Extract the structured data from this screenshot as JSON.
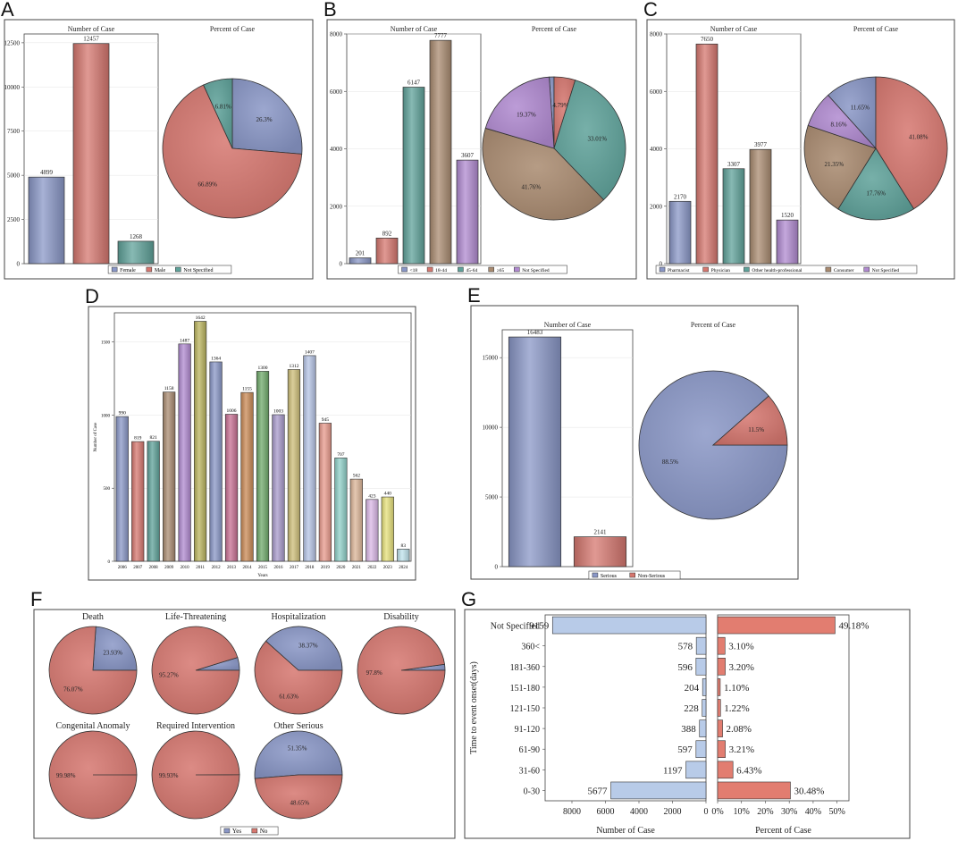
{
  "colors": {
    "blue": "#8a97c7",
    "red": "#d6776f",
    "teal": "#5fa29a",
    "tan": "#a98b70",
    "purple": "#b08ad0",
    "lightblue": "#b8cbe8",
    "salmon": "#e27d70"
  },
  "chart_data": [
    {
      "panel": "A",
      "type": "bar+pie",
      "bar_title": "Number of Case",
      "pie_title": "Percent of Case",
      "categories": [
        "Female",
        "Male",
        "Not Specified"
      ],
      "values": [
        4899,
        12457,
        1268
      ],
      "value_labels": [
        "4899",
        "12457",
        "1268"
      ],
      "percents": [
        26.3,
        66.89,
        6.81
      ],
      "percent_labels": [
        "26.3%",
        "66.89%",
        "6.81%"
      ],
      "colors": [
        "#8a97c7",
        "#d6776f",
        "#5fa29a"
      ],
      "ylim": [
        0,
        13000
      ],
      "yticks": [
        0,
        2500,
        5000,
        7500,
        10000,
        12500
      ]
    },
    {
      "panel": "B",
      "type": "bar+pie",
      "bar_title": "Number of Case",
      "pie_title": "Percent of Case",
      "categories": [
        "<18",
        "18-44",
        "45-64",
        "≥65",
        "Not Specified"
      ],
      "values": [
        201,
        892,
        6147,
        7777,
        3607
      ],
      "value_labels": [
        "201",
        "892",
        "6147",
        "7777",
        "3607"
      ],
      "percents": [
        1.08,
        4.79,
        33.01,
        41.76,
        19.37
      ],
      "percent_labels": [
        "",
        "4.79%",
        "33.01%",
        "41.76%",
        "19.37%"
      ],
      "colors": [
        "#8a97c7",
        "#d6776f",
        "#5fa29a",
        "#a98b70",
        "#b08ad0"
      ],
      "ylim": [
        0,
        8000
      ],
      "yticks": [
        0,
        2000,
        4000,
        6000,
        8000
      ]
    },
    {
      "panel": "C",
      "type": "bar+pie",
      "bar_title": "Number of Case",
      "pie_title": "Percent of Case",
      "categories": [
        "Pharmacist",
        "Physician",
        "Other health-professional",
        "Consumer",
        "Not Specified"
      ],
      "values": [
        2170,
        7650,
        3307,
        3977,
        1520
      ],
      "value_labels": [
        "2170",
        "7650",
        "3307",
        "3977",
        "1520"
      ],
      "percents": [
        11.65,
        41.08,
        17.76,
        21.35,
        8.16
      ],
      "percent_labels": [
        "11.65%",
        "41.08%",
        "17.76%",
        "21.35%",
        "8.16%"
      ],
      "colors": [
        "#8a97c7",
        "#d6776f",
        "#5fa29a",
        "#a98b70",
        "#b08ad0"
      ],
      "ylim": [
        0,
        8000
      ],
      "yticks": [
        0,
        2000,
        4000,
        6000,
        8000
      ]
    },
    {
      "panel": "D",
      "type": "bar",
      "xlabel": "Years",
      "ylabel": "Number of Case",
      "categories": [
        "2006",
        "2007",
        "2008",
        "2009",
        "2010",
        "2011",
        "2012",
        "2013",
        "2014",
        "2015",
        "2016",
        "2017",
        "2018",
        "2019",
        "2020",
        "2021",
        "2022",
        "2023",
        "2024"
      ],
      "values": [
        990,
        819,
        821,
        1158,
        1487,
        1642,
        1364,
        1006,
        1155,
        1300,
        1003,
        1312,
        1407,
        945,
        707,
        562,
        423,
        440,
        83
      ],
      "value_labels": [
        "990",
        "819",
        "821",
        "1158",
        "1487",
        "1642",
        "1364",
        "1006",
        "1155",
        "1300",
        "1003",
        "1312",
        "1407",
        "945",
        "707",
        "562",
        "423",
        "440",
        "83"
      ],
      "colors": [
        "#8a97c7",
        "#d6776f",
        "#5fa29a",
        "#a98b70",
        "#b08ad0",
        "#b9b35c",
        "#8a97c7",
        "#c76f92",
        "#c98a55",
        "#6faa6a",
        "#a79acb",
        "#cdbe78",
        "#b6c4e6",
        "#e89a8c",
        "#8fd0c8",
        "#dcb598",
        "#d9b7e6",
        "#e6e07a",
        "#bfe3ec"
      ],
      "ylim": [
        0,
        1700
      ],
      "yticks": [
        0,
        500,
        1000,
        1500
      ]
    },
    {
      "panel": "E",
      "type": "bar+pie",
      "bar_title": "Number of Case",
      "pie_title": "Percent of Case",
      "categories": [
        "Serious",
        "Non-Serious"
      ],
      "values": [
        16483,
        2141
      ],
      "value_labels": [
        "16483",
        "2141"
      ],
      "percents": [
        88.5,
        11.5
      ],
      "percent_labels": [
        "88.5%",
        "11.5%"
      ],
      "colors": [
        "#8a97c7",
        "#d6776f"
      ],
      "ylim": [
        0,
        17000
      ],
      "yticks": [
        0,
        5000,
        10000,
        15000
      ]
    },
    {
      "panel": "F",
      "type": "pie",
      "legend": [
        "Yes",
        "No"
      ],
      "colors": [
        "#8a97c7",
        "#d6776f"
      ],
      "pies": [
        {
          "title": "Death",
          "yes": 23.93,
          "yes_label": "23.93%",
          "no_label": "76.07%"
        },
        {
          "title": "Life-Threatening",
          "yes": 4.73,
          "yes_label": "",
          "no_label": "95.27%"
        },
        {
          "title": "Hospitalization",
          "yes": 38.37,
          "yes_label": "38.37%",
          "no_label": "61.63%"
        },
        {
          "title": "Disability",
          "yes": 2.2,
          "yes_label": "",
          "no_label": "97.8%"
        },
        {
          "title": "Congenital Anomaly",
          "yes": 0.02,
          "yes_label": "",
          "no_label": "99.98%"
        },
        {
          "title": "Required Intervention",
          "yes": 0.07,
          "yes_label": "",
          "no_label": "99.93%"
        },
        {
          "title": "Other Serious",
          "yes": 51.35,
          "yes_label": "51.35%",
          "no_label": "48.65%"
        }
      ]
    },
    {
      "panel": "G",
      "type": "bar",
      "ylabel": "Time to event onset(days)",
      "left_xlabel": "Number of Case",
      "right_xlabel": "Percent of Case",
      "categories": [
        "Not Specified",
        "360<",
        "181-360",
        "151-180",
        "121-150",
        "91-120",
        "61-90",
        "31-60",
        "0-30"
      ],
      "counts": [
        9159,
        578,
        596,
        204,
        228,
        388,
        597,
        1197,
        5677
      ],
      "count_labels": [
        "9159",
        "578",
        "596",
        "204",
        "228",
        "388",
        "597",
        "1197",
        "5677"
      ],
      "percents": [
        49.18,
        3.1,
        3.2,
        1.1,
        1.22,
        2.08,
        3.21,
        6.43,
        30.48
      ],
      "percent_labels": [
        "49.18%",
        "3.10%",
        "3.20%",
        "1.10%",
        "1.22%",
        "2.08%",
        "3.21%",
        "6.43%",
        "30.48%"
      ],
      "left_ticks": [
        8000,
        6000,
        4000,
        2000,
        0
      ],
      "right_ticks": [
        0,
        10,
        20,
        30,
        40,
        50
      ],
      "left_tick_labels": [
        "8000",
        "6000",
        "4000",
        "2000",
        "0"
      ],
      "right_tick_labels": [
        "0%",
        "10%",
        "20%",
        "30%",
        "40%",
        "50%"
      ],
      "left_max": 9600,
      "right_max": 55,
      "colors": [
        "#b8cbe8",
        "#e27d70"
      ]
    }
  ],
  "panels": [
    "A",
    "B",
    "C",
    "D",
    "E",
    "F",
    "G"
  ]
}
